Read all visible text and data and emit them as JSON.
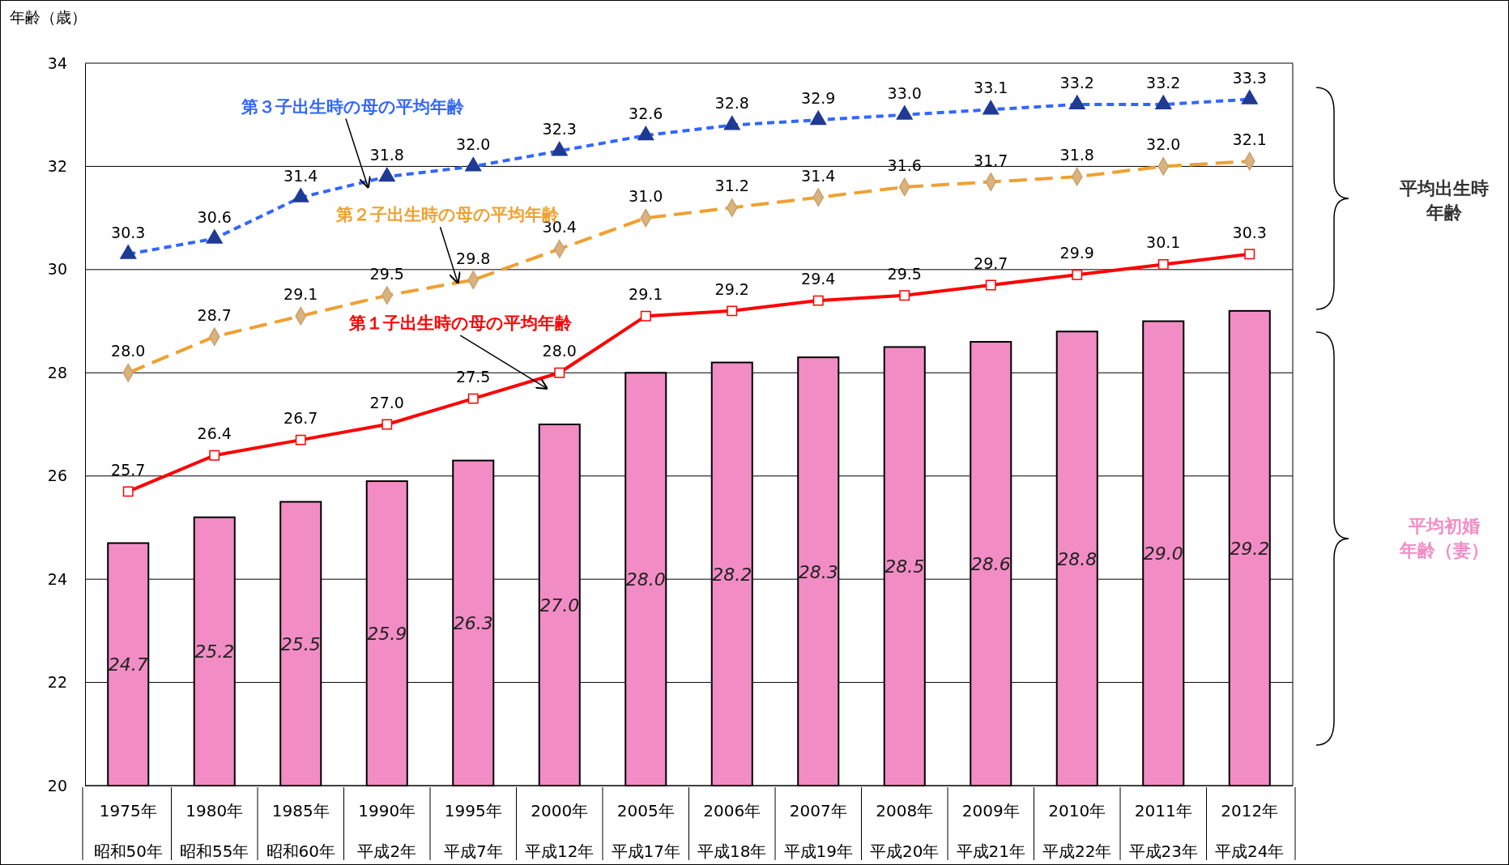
{
  "chart_data": {
    "type": "bar",
    "ylabel": "年齢（歳）",
    "categories": [
      "1975年昭和50年",
      "1980年昭和55年",
      "1985年昭和60年",
      "1990年平成2年",
      "1995年平成7年",
      "2000年平成12年",
      "2005年平成17年",
      "2006年平成18年",
      "2007年平成19年",
      "2008年平成20年",
      "2009年平成21年",
      "2010年平成22年",
      "2011年平成23年",
      "2012年平成24年"
    ],
    "series": [
      {
        "name": "平均初婚年齢（妻）",
        "color": "#f28cc4",
        "values": [
          24.7,
          25.2,
          25.5,
          25.9,
          26.3,
          27.0,
          28.0,
          28.2,
          28.3,
          28.5,
          28.6,
          28.8,
          29.0,
          29.2
        ],
        "value_labels": [
          "24.7",
          "25.2",
          "25.5",
          "25.9",
          "26.3",
          "27.0",
          "28.0",
          "28.2",
          "28.3",
          "28.5",
          "28.6",
          "28.8",
          "29.0",
          "29.2"
        ]
      },
      {
        "type": "line",
        "name": "第１子出生時の母の平均年齢",
        "color": "#ff0000",
        "marker": "square",
        "line_style": "solid",
        "values": [
          25.7,
          26.4,
          26.7,
          27.0,
          27.5,
          28.0,
          29.1,
          29.2,
          29.4,
          29.5,
          29.7,
          29.9,
          30.1,
          30.3
        ],
        "value_labels": [
          "25.7",
          "26.4",
          "26.7",
          "27.0",
          "27.5",
          "28.0",
          "29.1",
          "29.2",
          "29.4",
          "29.5",
          "29.7",
          "29.9",
          "30.1",
          "30.3"
        ]
      },
      {
        "type": "line",
        "name": "第２子出生時の母の平均年齢",
        "color": "#f0a030",
        "marker": "diamond",
        "line_style": "dashed",
        "values": [
          28.0,
          28.7,
          29.1,
          29.5,
          29.8,
          30.4,
          31.0,
          31.2,
          31.4,
          31.6,
          31.7,
          31.8,
          32.0,
          32.1
        ],
        "value_labels": [
          "28.0",
          "28.7",
          "29.1",
          "29.5",
          "29.8",
          "30.4",
          "31.0",
          "31.2",
          "31.4",
          "31.6",
          "31.7",
          "31.8",
          "32.0",
          "32.1"
        ]
      },
      {
        "type": "line",
        "name": "第３子出生時の母の平均年齢",
        "color": "#3366ff",
        "marker": "triangle",
        "line_style": "dotted",
        "values": [
          30.3,
          30.6,
          31.4,
          31.8,
          32.0,
          32.3,
          32.6,
          32.8,
          32.9,
          33.0,
          33.1,
          33.2,
          33.2,
          33.3
        ],
        "value_labels": [
          "30.3",
          "30.6",
          "31.4",
          "31.8",
          "32.0",
          "32.3",
          "32.6",
          "32.8",
          "32.9",
          "33.0",
          "33.1",
          "33.2",
          "33.2",
          "33.3"
        ]
      }
    ],
    "annotations": [
      "平均出生時年齢"
    ],
    "ylim": [
      20,
      34
    ],
    "yticks": [
      20,
      22,
      24,
      26,
      28,
      30,
      32,
      34
    ],
    "grid": "y"
  }
}
